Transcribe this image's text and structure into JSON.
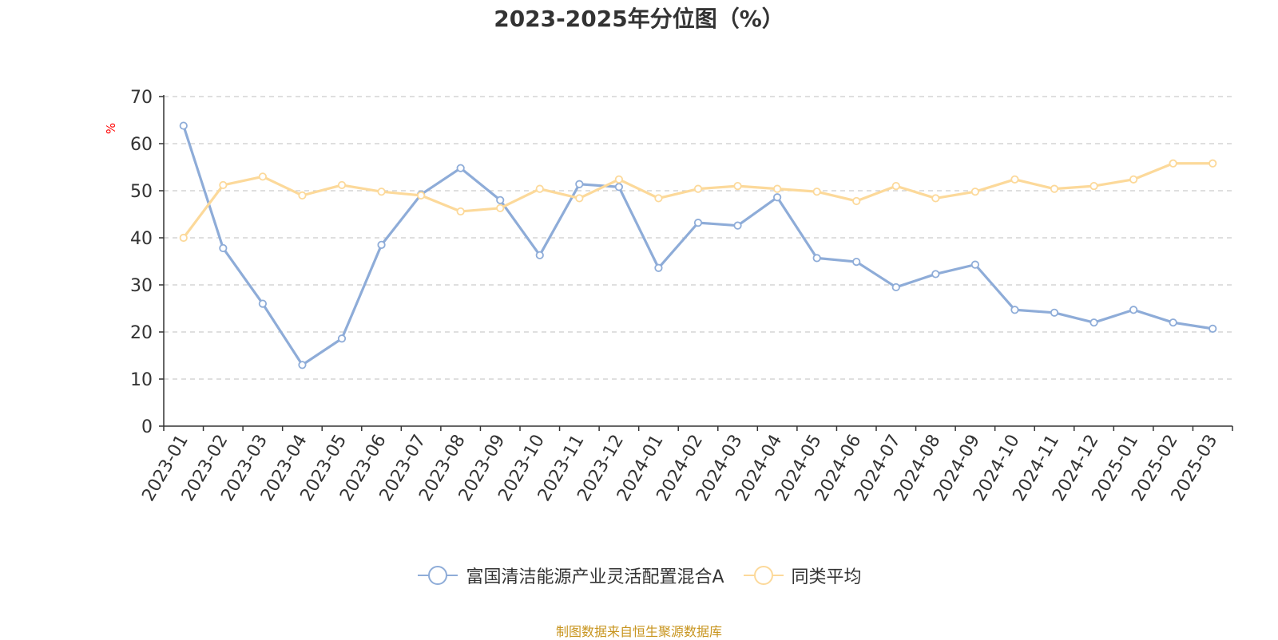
{
  "chart_data": {
    "type": "line",
    "title": "2023-2025年分位图（%）",
    "ylabel": "%",
    "ylim": [
      0,
      70
    ],
    "yticks": [
      0,
      10,
      20,
      30,
      40,
      50,
      60,
      70
    ],
    "grid": true,
    "legend_position": "bottom",
    "categories": [
      "2023-01",
      "2023-02",
      "2023-03",
      "2023-04",
      "2023-05",
      "2023-06",
      "2023-07",
      "2023-08",
      "2023-09",
      "2023-10",
      "2023-11",
      "2023-12",
      "2024-01",
      "2024-02",
      "2024-03",
      "2024-04",
      "2024-05",
      "2024-06",
      "2024-07",
      "2024-08",
      "2024-09",
      "2024-10",
      "2024-11",
      "2024-12",
      "2025-01",
      "2025-02",
      "2025-03"
    ],
    "series": [
      {
        "name": "富国清洁能源产业灵活配置混合A",
        "color": "#8eacd8",
        "values": [
          63.8,
          37.8,
          26.0,
          13.0,
          18.6,
          38.5,
          49.2,
          54.8,
          48.0,
          36.3,
          51.4,
          50.8,
          33.6,
          43.2,
          42.6,
          48.6,
          35.7,
          34.9,
          29.5,
          32.3,
          34.3,
          24.7,
          24.1,
          22.0,
          24.7,
          22.0,
          20.7
        ]
      },
      {
        "name": "同类平均",
        "color": "#fcd99a",
        "values": [
          40.0,
          51.2,
          53.0,
          49.0,
          51.2,
          49.8,
          49.0,
          45.6,
          46.3,
          50.4,
          48.4,
          52.4,
          48.4,
          50.4,
          51.0,
          50.4,
          49.8,
          47.8,
          51.0,
          48.4,
          49.8,
          52.4,
          50.4,
          51.0,
          52.4,
          55.8,
          55.8
        ]
      }
    ]
  },
  "source": "制图数据来自恒生聚源数据库"
}
